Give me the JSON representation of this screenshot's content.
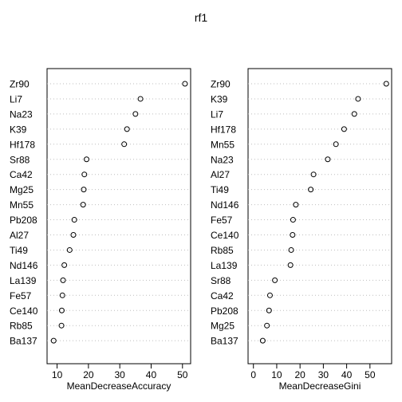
{
  "title": "rf1",
  "chart_data": [
    {
      "type": "scatter",
      "subtype": "dotchart",
      "xlabel": "MeanDecreaseAccuracy",
      "xlim": [
        6.8,
        52.6
      ],
      "xticks": [
        10,
        20,
        30,
        40,
        50
      ],
      "categories": [
        "Zr90",
        "Li7",
        "Na23",
        "K39",
        "Hf178",
        "Sr88",
        "Ca42",
        "Mg25",
        "Mn55",
        "Pb208",
        "Al27",
        "Ti49",
        "Nd146",
        "La139",
        "Fe57",
        "Ce140",
        "Rb85",
        "Ba137"
      ],
      "values": [
        50.8,
        36.6,
        35.0,
        32.3,
        31.4,
        19.4,
        18.7,
        18.5,
        18.3,
        15.5,
        15.2,
        14.0,
        12.3,
        11.9,
        11.7,
        11.5,
        11.4,
        8.9
      ]
    },
    {
      "type": "scatter",
      "subtype": "dotchart",
      "xlabel": "MeanDecreaseGini",
      "xlim": [
        -2.3,
        59.3
      ],
      "xticks": [
        0,
        10,
        20,
        30,
        40,
        50
      ],
      "categories": [
        "Zr90",
        "K39",
        "Li7",
        "Hf178",
        "Mn55",
        "Na23",
        "Al27",
        "Ti49",
        "Nd146",
        "Fe57",
        "Ce140",
        "Rb85",
        "La139",
        "Sr88",
        "Ca42",
        "Pb208",
        "Mg25",
        "Ba137"
      ],
      "values": [
        57.0,
        44.9,
        43.3,
        38.9,
        35.4,
        31.9,
        25.8,
        24.6,
        18.2,
        17.0,
        16.8,
        16.2,
        15.9,
        9.2,
        7.1,
        6.7,
        5.8,
        4.0
      ]
    }
  ]
}
